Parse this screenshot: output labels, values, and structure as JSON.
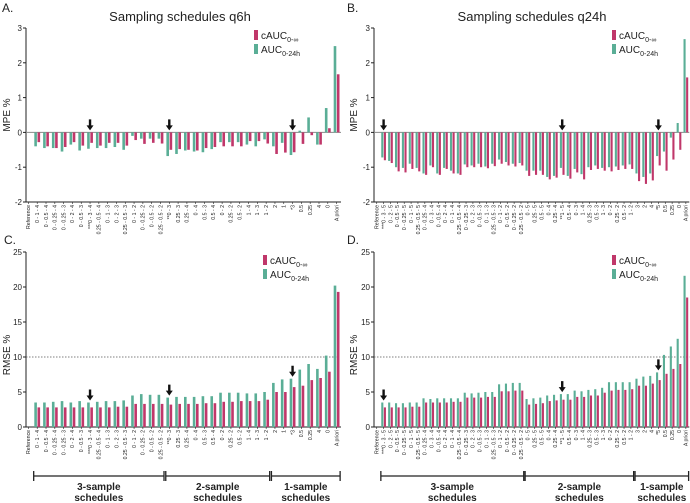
{
  "colors": {
    "cauc": "#c0376a",
    "auc": "#5aae96",
    "axis": "#222222",
    "zero": "#888888"
  },
  "group_labels": {
    "three": [
      "3-sample",
      "schedules"
    ],
    "two": [
      "2-sample",
      "schedules"
    ],
    "one": [
      "1-sample",
      "schedules"
    ]
  },
  "chart_data": [
    {
      "panel": "A.",
      "type": "bar",
      "title": "Sampling schedules q6h",
      "ylabel": "MPE %",
      "ylim": [
        -2,
        3
      ],
      "yticks": [
        -2,
        -1,
        0,
        1,
        2,
        3
      ],
      "legend": [
        {
          "name": "cAUC",
          "sub": "0-∞"
        },
        {
          "name": "AUC",
          "sub": "0-24h"
        }
      ],
      "legend_position": "top-right",
      "categories": [
        "Reference",
        "0 - 1 - 4",
        "0 - 0.5 - 4",
        "0 - 0.25 - 4",
        "0 - 0.25 - 3",
        "0 - 2 - 4",
        "0 - 0.5 - 3",
        "***0 - 3 - 4",
        "0.25 - 0.5 - 4",
        "0 - 1 - 3",
        "0 - 2 - 3",
        "0.25 - 0.5 - 3",
        "0 - 1 - 2",
        "0 - 0.25 - 2",
        "0 - 0.5 - 2",
        "0.25 - 0.5 - 2",
        "**0 - 3",
        "0.25 - 3",
        "0.25 - 4",
        "0 - 4",
        "0.5 - 3",
        "0.5 - 4",
        "0 - 2",
        "0.25 - 2",
        "0.5 - 2",
        "1 - 4",
        "1 - 3",
        "1 - 2",
        "2",
        "1",
        "*3",
        "0.5",
        "0.25",
        "4",
        "0",
        "A priori"
      ],
      "series": [
        {
          "name": "cAUC0-∞",
          "values": [
            null,
            -0.28,
            -0.4,
            -0.45,
            -0.42,
            -0.28,
            -0.38,
            -0.3,
            -0.38,
            -0.3,
            -0.3,
            -0.38,
            -0.22,
            -0.33,
            -0.3,
            -0.32,
            -0.5,
            -0.48,
            -0.5,
            -0.52,
            -0.45,
            -0.42,
            -0.4,
            -0.4,
            -0.4,
            -0.25,
            -0.25,
            -0.32,
            -0.62,
            -0.58,
            -0.57,
            -0.33,
            -0.08,
            -0.35,
            0.12,
            1.67
          ]
        },
        {
          "name": "AUC0-24h",
          "values": [
            null,
            -0.4,
            -0.45,
            -0.45,
            -0.55,
            -0.35,
            -0.52,
            -0.47,
            -0.45,
            -0.45,
            -0.42,
            -0.5,
            -0.1,
            -0.18,
            -0.18,
            -0.18,
            -0.68,
            -0.62,
            -0.52,
            -0.55,
            -0.57,
            -0.48,
            -0.28,
            -0.28,
            -0.28,
            -0.35,
            -0.4,
            -0.2,
            -0.4,
            -0.3,
            -0.65,
            0.05,
            0.43,
            -0.35,
            0.7,
            2.48
          ]
        }
      ],
      "arrows_at": [
        7,
        16,
        30
      ]
    },
    {
      "panel": "B.",
      "type": "bar",
      "title": "Sampling schedules q24h",
      "ylabel": "MPE %",
      "ylim": [
        -2,
        3
      ],
      "yticks": [
        -2,
        -1,
        0,
        1,
        2,
        3
      ],
      "legend": [
        {
          "name": "cAUC",
          "sub": "0-∞"
        },
        {
          "name": "AUC",
          "sub": "0-24h"
        }
      ],
      "legend_position": "top-right",
      "categories": [
        "Reference",
        "***0 - 3 - 5",
        "0 - 2 - 5",
        "0 - 0.5 - 5",
        "0 - 0.25 - 5",
        "0 - 1 - 5",
        "0.25 - 0.5 - 5",
        "0 - 0.25 - 4",
        "0 - 3 - 4",
        "0 - 0.5 - 4",
        "0 - 2 - 4",
        "0 - 1 - 4",
        "0.25 - 0.5 - 4",
        "0 - 0.25 - 3",
        "0 - 2 - 3",
        "0 - 0.5 - 3",
        "0 - 1 - 3",
        "0.25 - 0.5 - 3",
        "0 - 1 - 2",
        "0 - 0.5 - 2",
        "0 - 0.25 - 2",
        "0.25 - 0.5 - 2",
        "0 - 5",
        "0.25 - 5",
        "0.5 - 5",
        "0 - 4",
        "0.25 - 4",
        "**1 - 5",
        "0.5 - 4",
        "0 - 3",
        "1 - 4",
        "0.25 - 3",
        "0.5 - 3",
        "1 - 3",
        "0 - 2",
        "0.25 - 2",
        "0.5 - 2",
        "1 - 2",
        "3",
        "2",
        "4",
        "*5",
        "0.5",
        "0.25",
        "0",
        "A priori"
      ],
      "series": [
        {
          "name": "cAUC0-∞",
          "values": [
            null,
            -0.8,
            -0.88,
            -1.12,
            -1.15,
            -1.05,
            -1.12,
            -1.22,
            -1.0,
            -1.22,
            -1.05,
            -1.18,
            -1.22,
            -1.0,
            -1.0,
            -1.0,
            -1.03,
            -0.97,
            -0.9,
            -0.95,
            -0.98,
            -0.95,
            -1.25,
            -1.22,
            -1.22,
            -1.35,
            -1.3,
            -1.22,
            -1.33,
            -1.15,
            -1.35,
            -1.08,
            -1.05,
            -1.1,
            -1.12,
            -1.08,
            -1.05,
            -1.05,
            -1.4,
            -1.48,
            -1.38,
            -0.95,
            -1.1,
            -0.78,
            -0.5,
            1.58
          ]
        },
        {
          "name": "AUC0-24h",
          "values": [
            null,
            -0.72,
            -0.82,
            -1.0,
            -1.02,
            -0.9,
            -1.02,
            -1.18,
            -0.95,
            -1.18,
            -1.02,
            -1.1,
            -1.18,
            -0.92,
            -0.95,
            -0.9,
            -0.98,
            -0.9,
            -0.78,
            -0.85,
            -0.9,
            -0.88,
            -1.1,
            -1.1,
            -1.1,
            -1.28,
            -1.25,
            -1.02,
            -1.25,
            -1.05,
            -1.2,
            -1.0,
            -0.95,
            -1.02,
            -1.0,
            -0.98,
            -0.95,
            -0.92,
            -1.18,
            -1.28,
            -1.18,
            -0.68,
            -0.55,
            -0.15,
            0.27,
            2.68
          ]
        }
      ],
      "arrows_at": [
        1,
        27,
        41
      ]
    },
    {
      "panel": "C.",
      "type": "bar",
      "title": "",
      "ylabel": "RMSE %",
      "ylim": [
        0,
        25
      ],
      "yticks": [
        0,
        5,
        10,
        15,
        20,
        25
      ],
      "reference_line": 10,
      "legend": [
        {
          "name": "cAUC",
          "sub": "0-∞"
        },
        {
          "name": "AUC",
          "sub": "0-24h"
        }
      ],
      "legend_position": "top-right",
      "categories": [
        "Reference",
        "0 - 1 - 4",
        "0 - 0.5 - 4",
        "0 - 0.25 - 4",
        "0 - 0.25 - 3",
        "0 - 2 - 4",
        "0 - 0.5 - 3",
        "***0 - 3 - 4",
        "0.25 - 0.5 - 4",
        "0 - 1 - 3",
        "0 - 2 - 3",
        "0.25 - 0.5 - 3",
        "0 - 1 - 2",
        "0 - 0.25 - 2",
        "0 - 0.5 - 2",
        "0.25 - 0.5 - 2",
        "**0 - 3",
        "0.25 - 3",
        "0.25 - 4",
        "0 - 4",
        "0.5 - 3",
        "0.5 - 4",
        "0 - 2",
        "0.25 - 2",
        "0.5 - 2",
        "1 - 4",
        "1 - 3",
        "1 - 2",
        "2",
        "1",
        "*3",
        "0.5",
        "0.25",
        "4",
        "0",
        "A priori"
      ],
      "series": [
        {
          "name": "cAUC0-∞",
          "values": [
            null,
            2.8,
            2.8,
            2.8,
            2.8,
            2.8,
            2.8,
            2.8,
            2.8,
            2.8,
            2.9,
            2.9,
            3.3,
            3.3,
            3.3,
            3.3,
            3.2,
            3.3,
            3.3,
            3.3,
            3.4,
            3.4,
            3.6,
            3.6,
            3.7,
            3.7,
            3.7,
            3.9,
            5.0,
            5.0,
            5.7,
            5.9,
            6.7,
            7.0,
            7.9,
            19.3
          ]
        },
        {
          "name": "AUC0-24h",
          "values": [
            null,
            3.5,
            3.5,
            3.6,
            3.7,
            3.5,
            3.7,
            3.5,
            3.6,
            3.7,
            3.7,
            3.8,
            4.5,
            4.7,
            4.6,
            4.6,
            4.2,
            4.3,
            4.3,
            4.3,
            4.4,
            4.4,
            4.9,
            4.9,
            4.9,
            4.8,
            4.8,
            5.0,
            6.3,
            6.8,
            6.9,
            8.2,
            9.0,
            8.3,
            10.2,
            20.2
          ]
        }
      ],
      "arrows_at": [
        7,
        16,
        30
      ],
      "groups": [
        {
          "key": "three",
          "from": 1,
          "to": 15
        },
        {
          "key": "two",
          "from": 16,
          "to": 27
        },
        {
          "key": "one",
          "from": 28,
          "to": 35
        }
      ]
    },
    {
      "panel": "D.",
      "type": "bar",
      "title": "",
      "ylabel": "RMSE %",
      "ylim": [
        0,
        25
      ],
      "yticks": [
        0,
        5,
        10,
        15,
        20,
        25
      ],
      "reference_line": 10,
      "legend": [
        {
          "name": "cAUC",
          "sub": "0-∞"
        },
        {
          "name": "AUC",
          "sub": "0-24h"
        }
      ],
      "legend_position": "top-right",
      "categories": [
        "Reference",
        "***0 - 3 - 5",
        "0 - 2 - 5",
        "0 - 0.5 - 5",
        "0 - 0.25 - 5",
        "0 - 1 - 5",
        "0.25 - 0.5 - 5",
        "0 - 0.25 - 4",
        "0 - 3 - 4",
        "0 - 0.5 - 4",
        "0 - 2 - 4",
        "0 - 1 - 4",
        "0.25 - 0.5 - 4",
        "0 - 0.25 - 3",
        "0 - 2 - 3",
        "0 - 0.5 - 3",
        "0 - 1 - 3",
        "0.25 - 0.5 - 3",
        "0 - 1 - 2",
        "0 - 0.5 - 2",
        "0 - 0.25 - 2",
        "0.25 - 0.5 - 2",
        "0 - 5",
        "0.25 - 5",
        "0.5 - 5",
        "0 - 4",
        "0.25 - 4",
        "**1 - 5",
        "0.5 - 4",
        "0 - 3",
        "1 - 4",
        "0.25 - 3",
        "0.5 - 3",
        "1 - 3",
        "0 - 2",
        "0.25 - 2",
        "0.5 - 2",
        "1 - 2",
        "3",
        "2",
        "4",
        "*5",
        "0.5",
        "0.25",
        "0",
        "A priori"
      ],
      "series": [
        {
          "name": "cAUC0-∞",
          "values": [
            null,
            2.8,
            2.8,
            2.8,
            2.8,
            2.9,
            2.9,
            3.5,
            3.5,
            3.5,
            3.5,
            3.6,
            3.6,
            4.2,
            4.2,
            4.2,
            4.3,
            4.3,
            5.1,
            5.1,
            5.2,
            5.2,
            3.2,
            3.3,
            3.4,
            3.7,
            3.8,
            3.9,
            3.9,
            4.3,
            4.3,
            4.5,
            4.5,
            4.9,
            5.2,
            5.3,
            5.3,
            5.4,
            5.9,
            5.9,
            6.2,
            6.7,
            7.6,
            8.3,
            9.0,
            18.5
          ]
        },
        {
          "name": "AUC0-24h",
          "values": [
            null,
            3.5,
            3.5,
            3.4,
            3.4,
            3.5,
            3.5,
            4.1,
            4.0,
            4.1,
            4.1,
            4.1,
            4.1,
            4.9,
            4.8,
            4.9,
            5.0,
            5.0,
            6.1,
            6.2,
            6.3,
            6.3,
            4.0,
            4.1,
            4.2,
            4.5,
            4.6,
            4.7,
            4.7,
            5.2,
            5.1,
            5.3,
            5.4,
            5.6,
            6.4,
            6.4,
            6.4,
            6.4,
            6.9,
            7.2,
            7.3,
            7.8,
            10.3,
            11.5,
            12.6,
            21.6
          ]
        }
      ],
      "arrows_at": [
        1,
        27,
        41
      ],
      "groups": [
        {
          "key": "three",
          "from": 1,
          "to": 21
        },
        {
          "key": "two",
          "from": 22,
          "to": 37
        },
        {
          "key": "one",
          "from": 38,
          "to": 45
        }
      ]
    }
  ]
}
